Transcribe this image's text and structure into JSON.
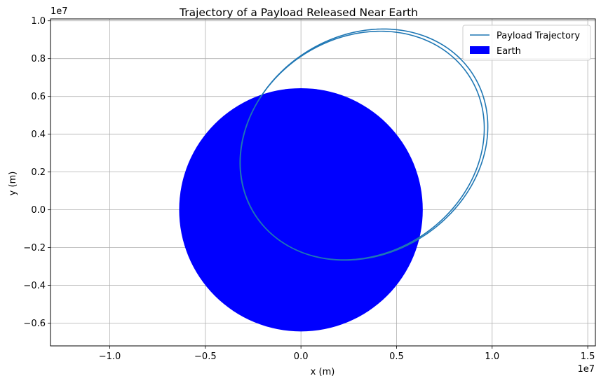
{
  "chart_data": {
    "type": "line",
    "title": "Trajectory of a Payload Released Near Earth",
    "xlabel": "x (m)",
    "ylabel": "y (m)",
    "x_offset_label": "1e7",
    "y_offset_label": "1e7",
    "xlim": [
      -13100000.0,
      15400000.0
    ],
    "ylim": [
      -7200000.0,
      10100000.0
    ],
    "x_ticks": [
      -10000000.0,
      -5000000.0,
      0,
      5000000.0,
      10000000.0,
      15000000.0
    ],
    "x_tick_labels": [
      "−1.0",
      "−0.5",
      "0.0",
      "0.5",
      "1.0",
      "1.5"
    ],
    "y_ticks": [
      -6000000.0,
      -4000000.0,
      -2000000.0,
      0,
      2000000.0,
      4000000.0,
      6000000.0,
      8000000.0,
      10000000.0
    ],
    "y_tick_labels": [
      "−0.6",
      "−0.4",
      "−0.2",
      "0.0",
      "0.2",
      "0.4",
      "0.6",
      "0.8",
      "1.0"
    ],
    "grid": true,
    "legend_position": "top-right",
    "series": [
      {
        "name": "Payload Trajectory",
        "kind": "line",
        "color": "#1f77b4",
        "orbits": [
          {
            "a": 6700000.0,
            "b": 5700000.0,
            "cx": 3200000.0,
            "cy": 3400000.0,
            "angle_deg": 35
          },
          {
            "a": 6800000.0,
            "b": 5750000.0,
            "cx": 3300000.0,
            "cy": 3450000.0,
            "angle_deg": 35
          }
        ]
      },
      {
        "name": "Earth",
        "kind": "circle",
        "color": "#0000ff",
        "center": [
          0,
          0
        ],
        "radius": 6371000.0
      }
    ]
  }
}
